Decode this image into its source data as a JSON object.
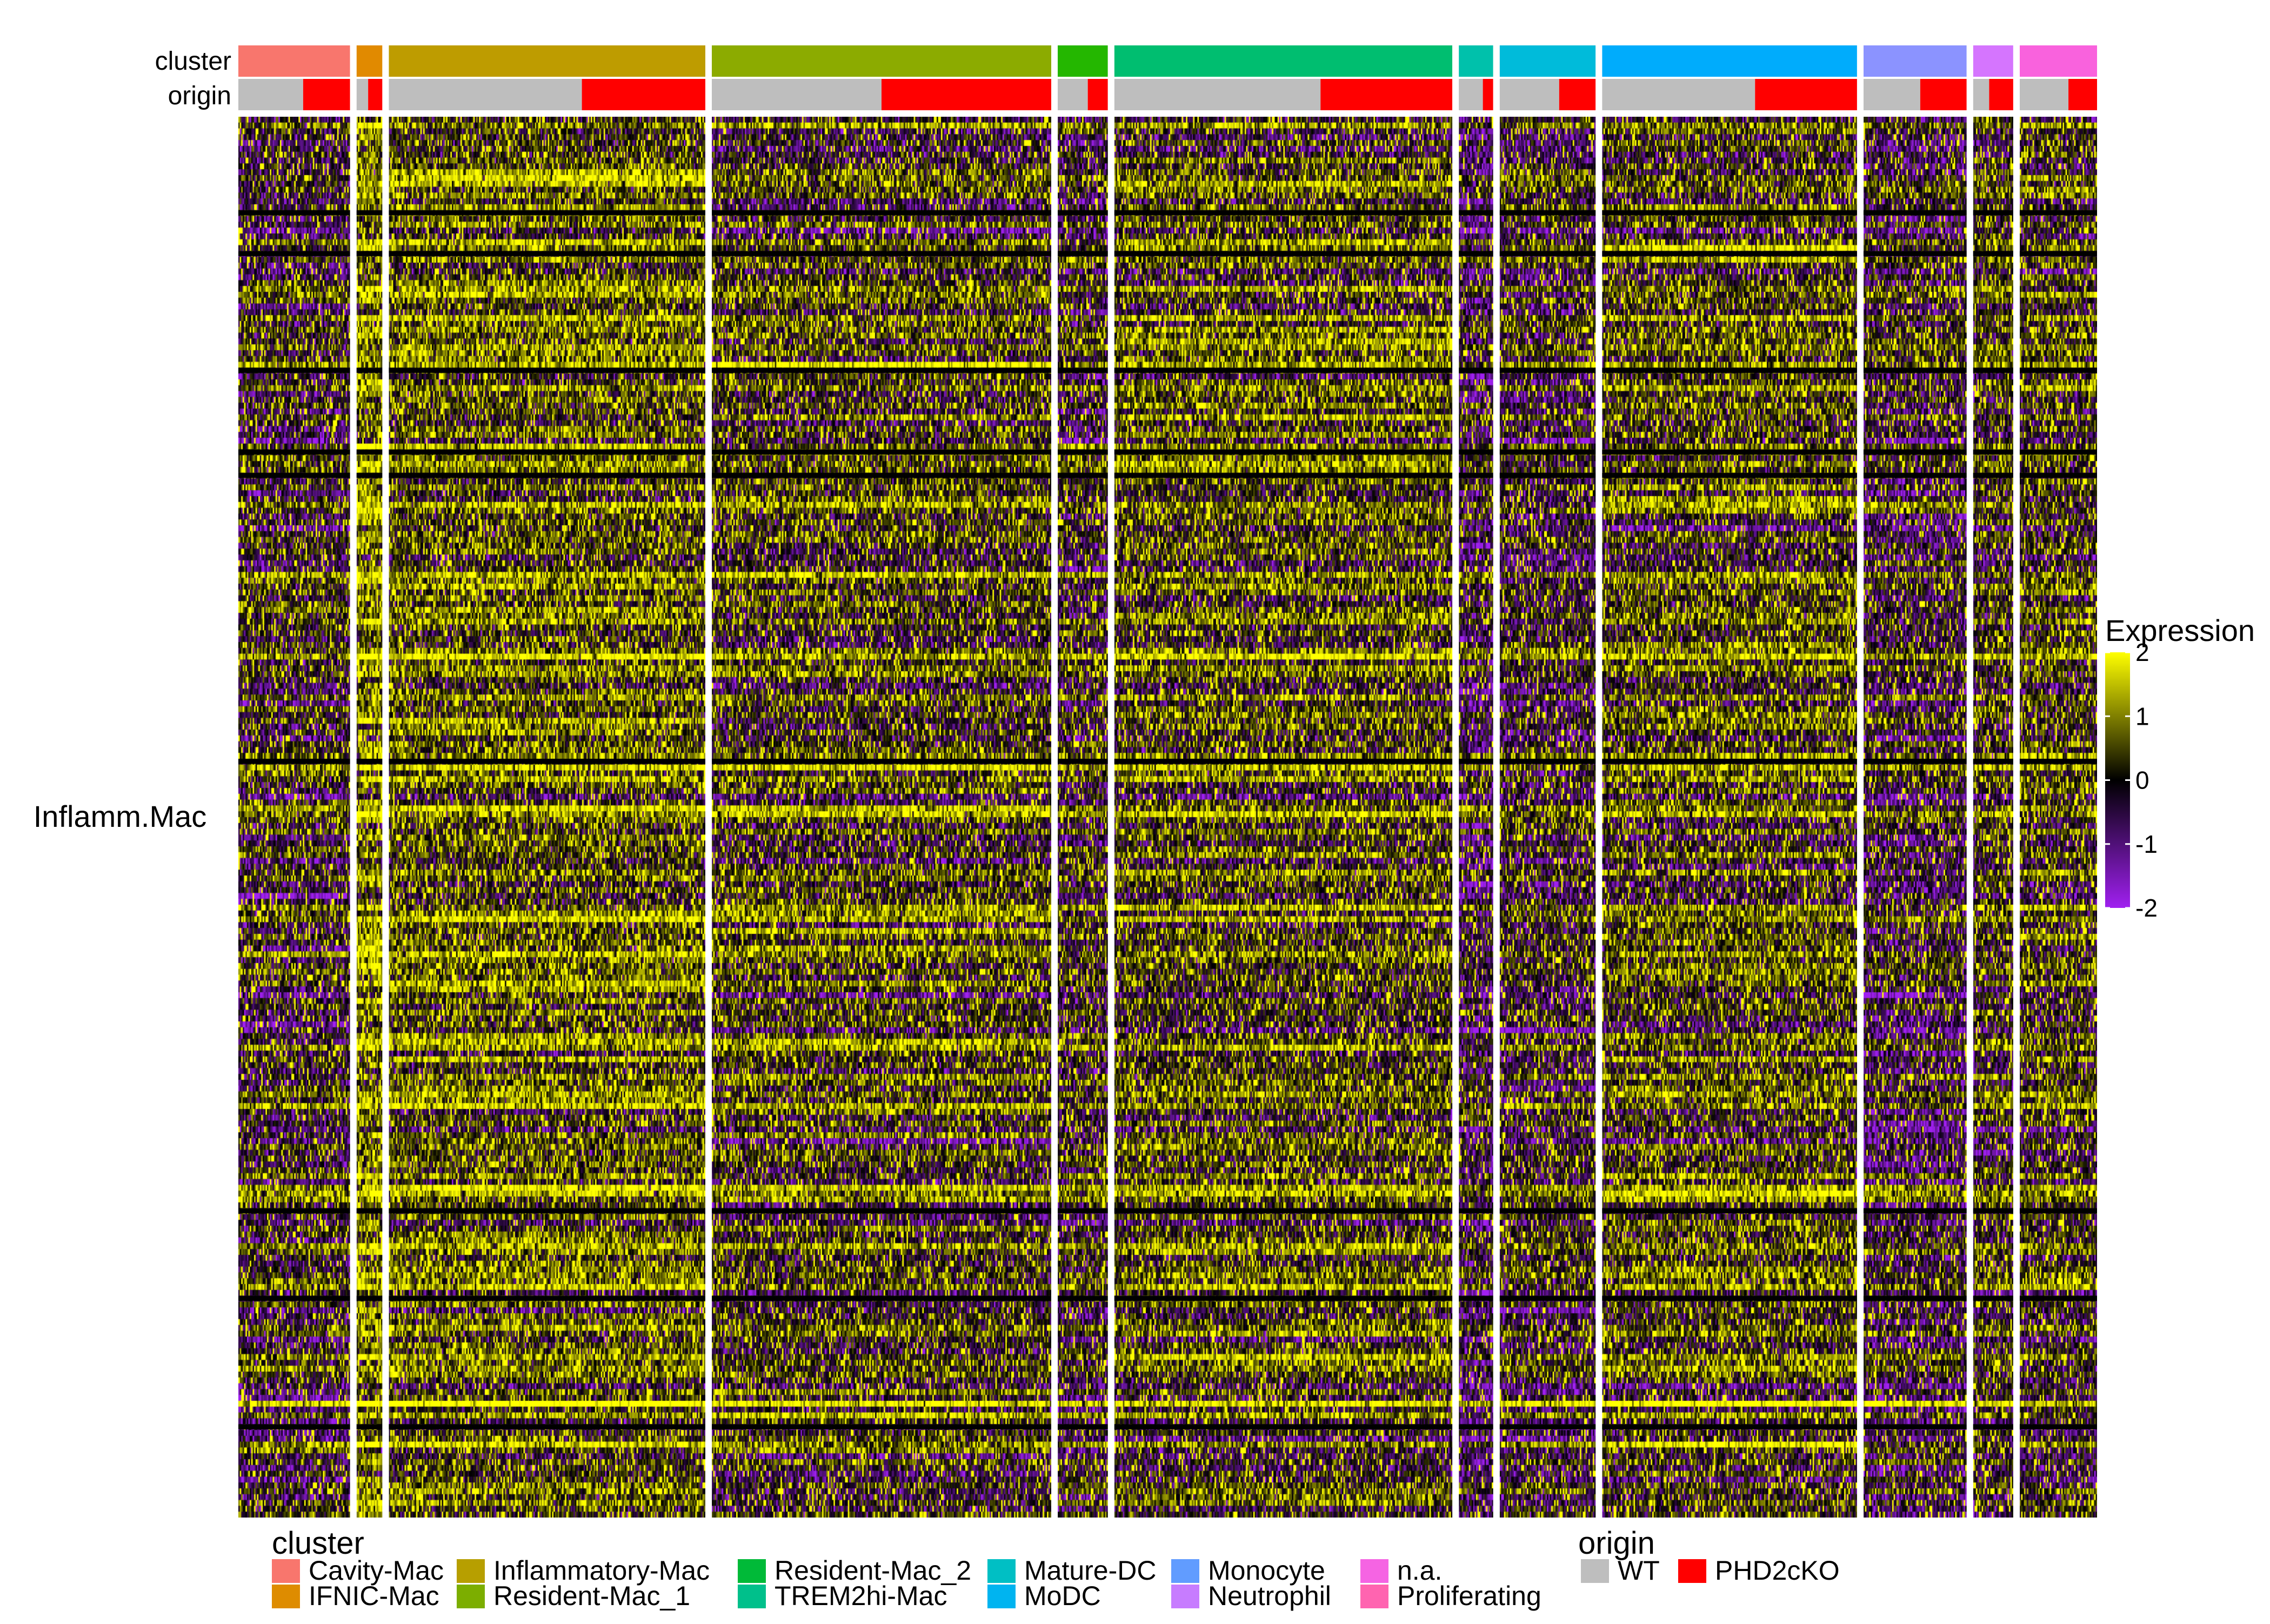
{
  "chart_data": {
    "type": "heatmap",
    "row_group_label": "Inflamm.Mac",
    "annotation_rows": [
      "cluster",
      "origin"
    ],
    "clusters": [
      {
        "name": "Cavity-Mac",
        "color": "#F8766D",
        "cells": 78,
        "wt_fraction": 0.58,
        "profile": -0.15
      },
      {
        "name": "IFNIC-Mac",
        "color": "#E18A00",
        "cells": 18,
        "wt_fraction": 0.45,
        "profile": 0.9
      },
      {
        "name": "Inflammatory-Mac",
        "color": "#BE9C00",
        "cells": 221,
        "wt_fraction": 0.61,
        "profile": 0.55
      },
      {
        "name": "Resident-Mac_1",
        "color": "#8CAB00",
        "cells": 237,
        "wt_fraction": 0.5,
        "profile": 0.2
      },
      {
        "name": "Resident-Mac_2",
        "color": "#24B700",
        "cells": 35,
        "wt_fraction": 0.6,
        "profile": -0.1
      },
      {
        "name": "TREM2hi-Mac",
        "color": "#00BE70",
        "cells": 236,
        "wt_fraction": 0.61,
        "profile": 0.3
      },
      {
        "name": "Mature-DC",
        "color": "#00C1AB",
        "cells": 24,
        "wt_fraction": 0.7,
        "profile": -0.45
      },
      {
        "name": "MoDC",
        "color": "#00BBDA",
        "cells": 67,
        "wt_fraction": 0.62,
        "profile": -0.2
      },
      {
        "name": "Monocyte",
        "color": "#00ACFC",
        "cells": 178,
        "wt_fraction": 0.6,
        "profile": 0.25
      },
      {
        "name": "Neutrophil",
        "color": "#8B93FF",
        "cells": 72,
        "wt_fraction": 0.55,
        "profile": -0.3
      },
      {
        "name": "n.a.",
        "color": "#D575FE",
        "cells": 28,
        "wt_fraction": 0.4,
        "profile": 0.05
      },
      {
        "name": "Proliferating",
        "color": "#F962DD",
        "cells": 54,
        "wt_fraction": 0.63,
        "profile": 0.15
      }
    ],
    "legend_order": [
      [
        "Cavity-Mac",
        "IFNIC-Mac"
      ],
      [
        "Inflammatory-Mac",
        "Resident-Mac_1"
      ],
      [
        "Resident-Mac_2",
        "TREM2hi-Mac"
      ],
      [
        "Mature-DC",
        "MoDC"
      ],
      [
        "Monocyte",
        "Neutrophil"
      ],
      [
        "n.a.",
        "Proliferating"
      ]
    ],
    "legend_colors": {
      "Cavity-Mac": "#F8766D",
      "IFNIC-Mac": "#DE8C00",
      "Inflammatory-Mac": "#B79F00",
      "Resident-Mac_1": "#7CAE00",
      "Resident-Mac_2": "#00BA38",
      "TREM2hi-Mac": "#00C08B",
      "Mature-DC": "#00BFC4",
      "MoDC": "#00B4F0",
      "Monocyte": "#619CFF",
      "Neutrophil": "#C77CFF",
      "n.a.": "#F564E3",
      "Proliferating": "#FF64B0"
    },
    "origin": [
      {
        "name": "WT",
        "color": "#BEBEBE"
      },
      {
        "name": "PHD2cKO",
        "color": "#FF0000"
      }
    ],
    "gene_rows": 240,
    "colorscale": {
      "title": "Expression",
      "min": -2,
      "max": 2,
      "ticks": [
        2,
        1,
        0,
        -1,
        -2
      ],
      "stops": [
        "#A020F0",
        "#000000",
        "#FFFF00"
      ]
    },
    "labels": {
      "cluster_legend_title": "cluster",
      "origin_legend_title": "origin",
      "cluster_row": "cluster",
      "origin_row": "origin"
    }
  }
}
